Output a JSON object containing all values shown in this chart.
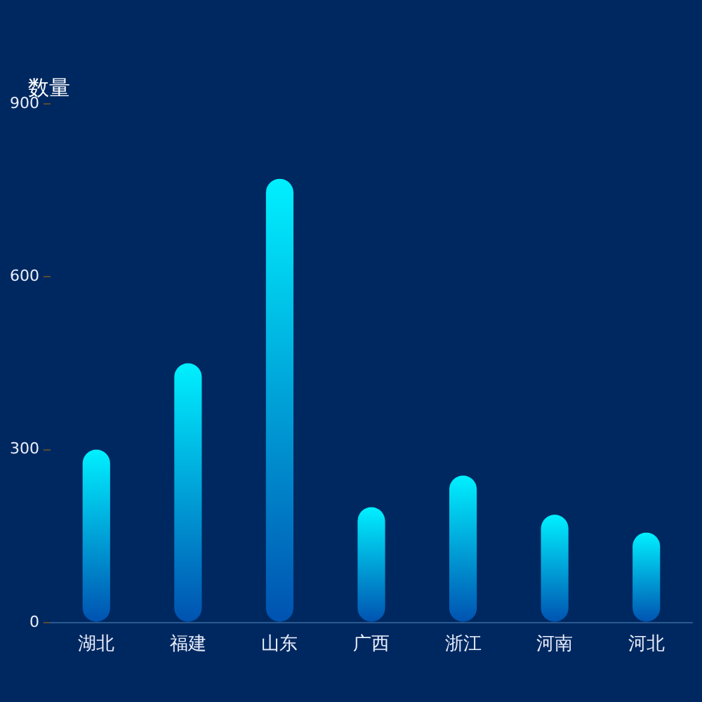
{
  "chart_data": {
    "type": "bar",
    "ylabel": "数量",
    "categories": [
      "湖北",
      "福建",
      "山东",
      "广西",
      "浙江",
      "河南",
      "河北"
    ],
    "values": [
      300,
      450,
      770,
      200,
      255,
      187,
      156
    ],
    "color": "#00f0ff",
    "ylim": [
      0,
      900
    ],
    "yticks": [
      0,
      300,
      600,
      900
    ],
    "grid": false,
    "legend": false
  }
}
